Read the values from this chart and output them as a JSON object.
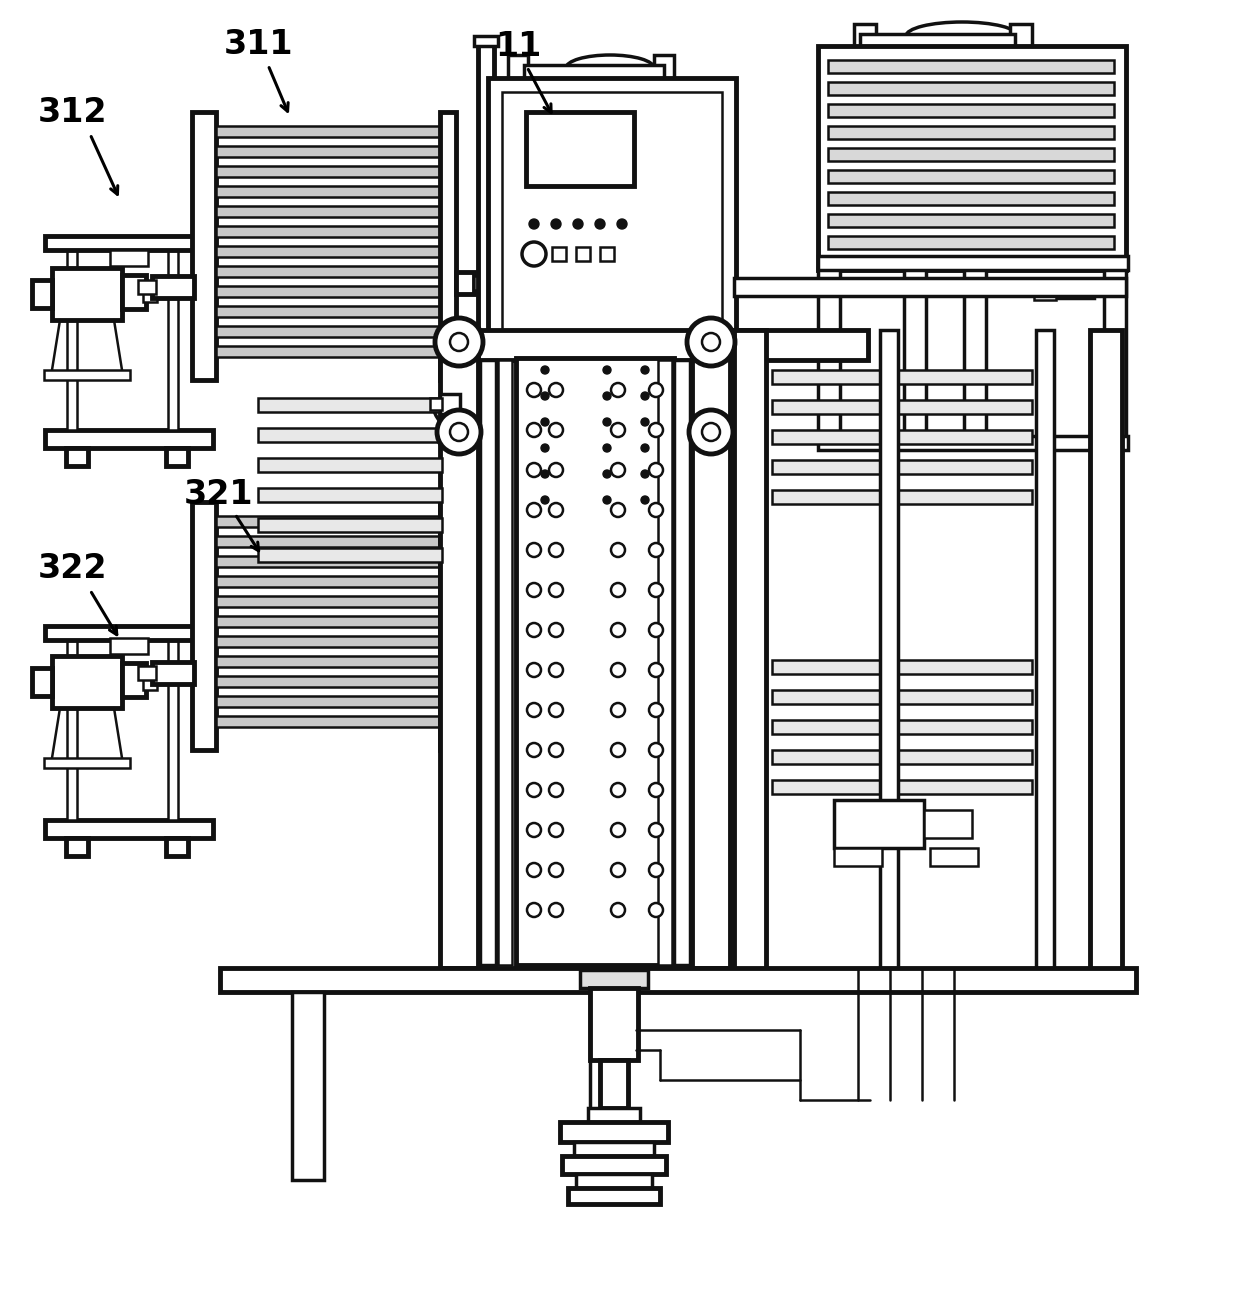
{
  "bg": "#ffffff",
  "lc": "#111111",
  "lw": 1.8,
  "tlw": 3.5,
  "mlw": 2.5
}
